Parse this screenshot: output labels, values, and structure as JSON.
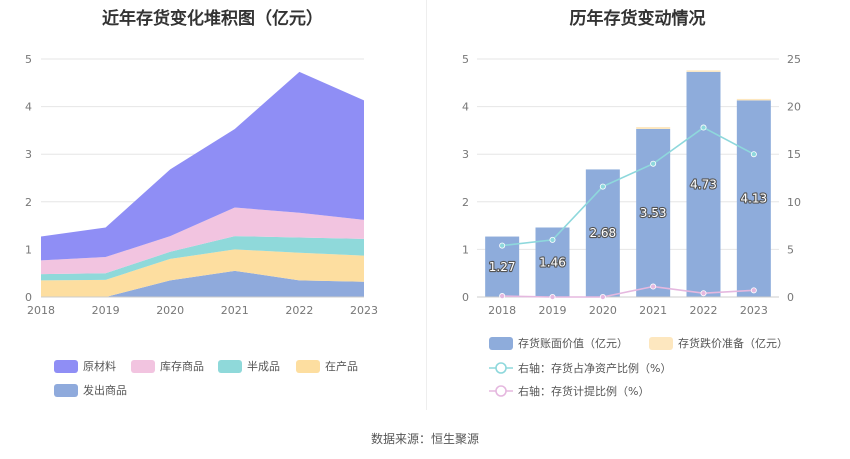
{
  "source": "数据来源：恒生聚源",
  "chart_data": [
    {
      "type": "area",
      "title": "近年存货变化堆积图（亿元）",
      "x": [
        "2018",
        "2019",
        "2020",
        "2021",
        "2022",
        "2023"
      ],
      "ylim": [
        0,
        5
      ],
      "y_ticks": [
        "0",
        "1",
        "2",
        "3",
        "4",
        "5"
      ],
      "stacked": true,
      "grid": true,
      "legend_position": "bottom",
      "series": [
        {
          "name": "发出商品",
          "color": "#8faadc",
          "values": [
            0.0,
            0.0,
            0.35,
            0.55,
            0.35,
            0.32
          ]
        },
        {
          "name": "在产品",
          "color": "#fddea0",
          "values": [
            0.35,
            0.36,
            0.45,
            0.45,
            0.58,
            0.55
          ]
        },
        {
          "name": "半成品",
          "color": "#8fd9da",
          "values": [
            0.13,
            0.14,
            0.15,
            0.28,
            0.32,
            0.35
          ]
        },
        {
          "name": "库存商品",
          "color": "#f2c4e0",
          "values": [
            0.29,
            0.34,
            0.33,
            0.6,
            0.52,
            0.4
          ]
        },
        {
          "name": "原材料",
          "color": "#8f8ef5",
          "values": [
            0.5,
            0.62,
            1.4,
            1.65,
            2.96,
            2.51
          ]
        }
      ],
      "legend_order": [
        "原材料",
        "库存商品",
        "半成品",
        "在产品",
        "发出商品"
      ]
    },
    {
      "type": "bar",
      "title": "历年存货变动情况",
      "categories": [
        "2018",
        "2019",
        "2020",
        "2021",
        "2022",
        "2023"
      ],
      "ylim": [
        0,
        5
      ],
      "y_ticks": [
        "0",
        "1",
        "2",
        "3",
        "4",
        "5"
      ],
      "y2lim": [
        0,
        25
      ],
      "y2_ticks": [
        "0",
        "5",
        "10",
        "15",
        "20",
        "25"
      ],
      "grid": true,
      "legend_position": "bottom",
      "series": [
        {
          "name": "存货账面价值（亿元）",
          "axis": "left",
          "kind": "bar",
          "color": "#8eacdb",
          "values": [
            1.27,
            1.46,
            2.68,
            3.53,
            4.73,
            4.13
          ],
          "labels": [
            "1.27",
            "1.46",
            "2.68",
            "3.53",
            "4.73",
            "4.13"
          ]
        },
        {
          "name": "存货跌价准备（亿元）",
          "axis": "left",
          "kind": "bar",
          "color": "#fde7bf",
          "values": [
            0.0,
            0.0,
            0.0,
            0.04,
            0.02,
            0.03
          ]
        },
        {
          "name": "右轴：存货占净资产比例（%）",
          "axis": "right",
          "kind": "line",
          "color": "#8ed8dc",
          "values": [
            5.4,
            6.0,
            11.6,
            14.0,
            17.8,
            15.0
          ]
        },
        {
          "name": "右轴：存货计提比例（%）",
          "axis": "right",
          "kind": "line",
          "color": "#e5b8df",
          "values": [
            0.1,
            0.0,
            0.0,
            1.1,
            0.4,
            0.7
          ]
        }
      ]
    }
  ]
}
